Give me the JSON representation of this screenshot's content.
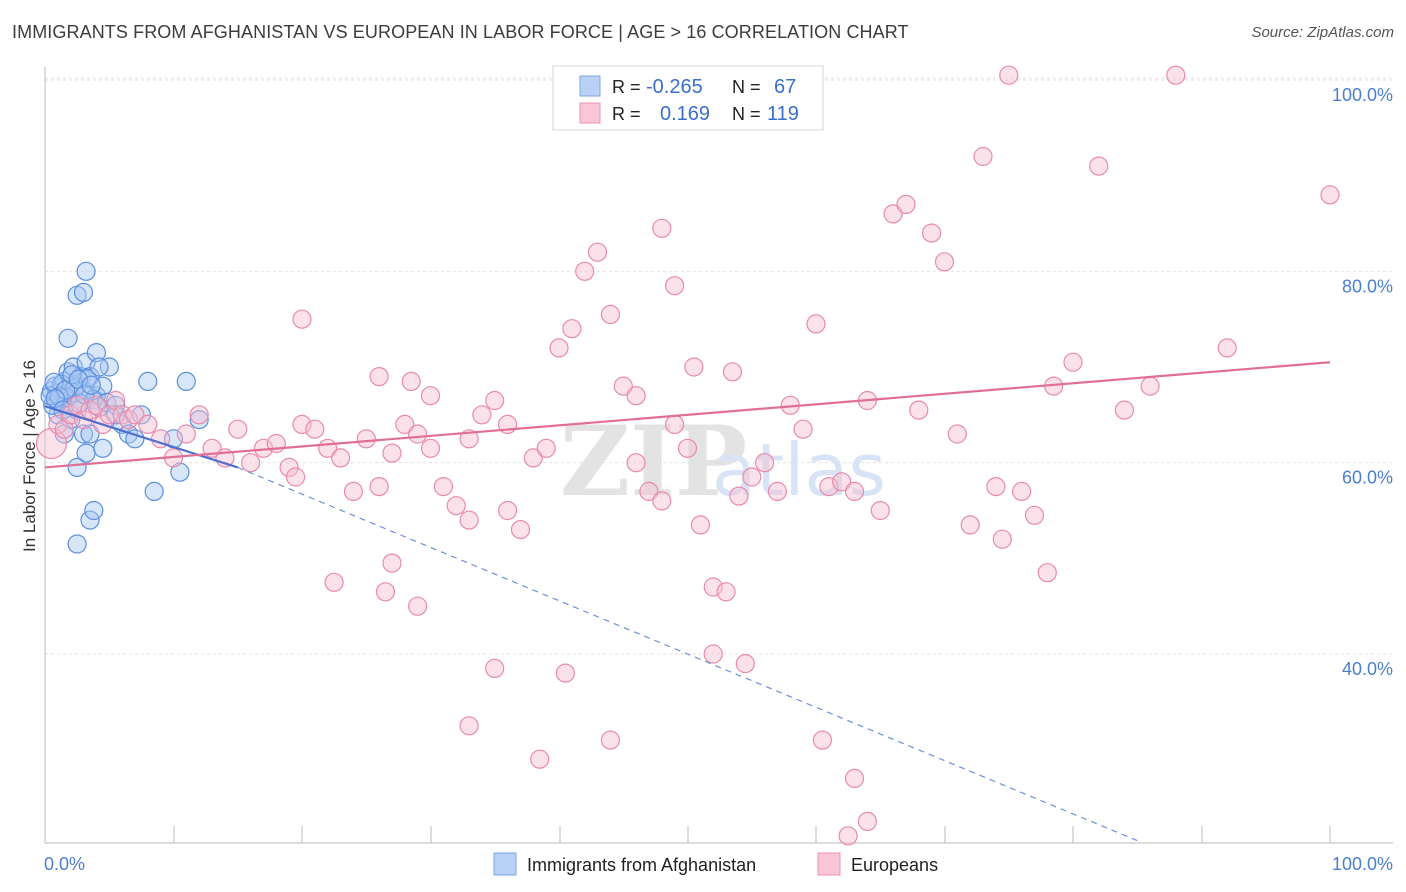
{
  "title": "IMMIGRANTS FROM AFGHANISTAN VS EUROPEAN IN LABOR FORCE | AGE > 16 CORRELATION CHART",
  "source": "Source: ZipAtlas.com",
  "watermark": {
    "zip": "ZIP",
    "atlas": "atlas"
  },
  "colors": {
    "blue": "#5b8fe0",
    "blue_fill": "#a9c7f2",
    "pink": "#e8799e",
    "pink_fill": "#f5b9cd",
    "tick": "#4a7fd0"
  },
  "legend_top": {
    "rows": [
      {
        "r_label": "R =",
        "r_value": "-0.265",
        "n_label": "N =",
        "n_value": "67"
      },
      {
        "r_label": "R =",
        "r_value": "0.169",
        "n_label": "N =",
        "n_value": "119"
      }
    ]
  },
  "chart_data": {
    "type": "scatter",
    "title": "IMMIGRANTS FROM AFGHANISTAN VS EUROPEAN IN LABOR FORCE | AGE > 16 CORRELATION CHART",
    "xlabel": "",
    "ylabel": "In Labor Force | Age > 16",
    "xlim": [
      0,
      100
    ],
    "ylim": [
      20,
      102
    ],
    "x_tick_labels": [
      "0.0%",
      "100.0%"
    ],
    "y_ticks": [
      40,
      60,
      80,
      100
    ],
    "y_tick_labels": [
      "40.0%",
      "60.0%",
      "80.0%",
      "100.0%"
    ],
    "grid": true,
    "series": [
      {
        "name": "Immigrants from Afghanistan",
        "r": -0.265,
        "n": 67,
        "trend": {
          "x0": 0,
          "y0": 65.9,
          "x1": 15,
          "y1": 59.5,
          "dash_to_x": 85,
          "dash_to_y": 20.5
        },
        "points": [
          [
            0.5,
            67.5
          ],
          [
            0.8,
            68.0
          ],
          [
            1.0,
            66.5
          ],
          [
            1.2,
            67.0
          ],
          [
            1.5,
            68.5
          ],
          [
            1.8,
            69.5
          ],
          [
            2.0,
            67.0
          ],
          [
            2.2,
            70.0
          ],
          [
            2.5,
            68.0
          ],
          [
            2.8,
            69.0
          ],
          [
            3.0,
            67.5
          ],
          [
            3.2,
            70.5
          ],
          [
            3.5,
            69.0
          ],
          [
            4.0,
            67.0
          ],
          [
            4.5,
            68.0
          ],
          [
            1.0,
            65.0
          ],
          [
            1.5,
            66.0
          ],
          [
            2.0,
            64.5
          ],
          [
            2.5,
            65.5
          ],
          [
            3.0,
            63.0
          ],
          [
            0.6,
            66.0
          ],
          [
            0.9,
            67.2
          ],
          [
            1.3,
            68.2
          ],
          [
            1.7,
            66.8
          ],
          [
            2.3,
            67.8
          ],
          [
            2.7,
            66.2
          ],
          [
            3.3,
            68.8
          ],
          [
            3.8,
            66.6
          ],
          [
            4.2,
            65.8
          ],
          [
            0.4,
            67.0
          ],
          [
            0.7,
            68.4
          ],
          [
            1.1,
            66.9
          ],
          [
            1.6,
            67.6
          ],
          [
            2.1,
            69.2
          ],
          [
            2.6,
            68.7
          ],
          [
            3.1,
            67.1
          ],
          [
            3.6,
            68.1
          ],
          [
            4.8,
            66.3
          ],
          [
            5.0,
            70.0
          ],
          [
            5.5,
            66.0
          ],
          [
            6.0,
            64.0
          ],
          [
            6.5,
            63.0
          ],
          [
            7.0,
            62.5
          ],
          [
            8.0,
            68.5
          ],
          [
            3.2,
            80.0
          ],
          [
            2.5,
            77.5
          ],
          [
            3.0,
            77.8
          ],
          [
            4.0,
            71.5
          ],
          [
            1.8,
            73.0
          ],
          [
            4.2,
            70.0
          ],
          [
            11.0,
            68.5
          ],
          [
            3.5,
            63.0
          ],
          [
            3.2,
            61.0
          ],
          [
            4.5,
            61.5
          ],
          [
            1.5,
            63.0
          ],
          [
            7.5,
            65.0
          ],
          [
            2.5,
            59.5
          ],
          [
            8.5,
            57.0
          ],
          [
            3.5,
            54.0
          ],
          [
            3.8,
            55.0
          ],
          [
            2.5,
            51.5
          ],
          [
            10.5,
            59.0
          ],
          [
            12.0,
            64.5
          ],
          [
            10.0,
            62.5
          ],
          [
            5.5,
            65.0
          ],
          [
            0.8,
            66.7
          ],
          [
            1.4,
            65.5
          ]
        ]
      },
      {
        "name": "Europeans",
        "r": 0.169,
        "n": 119,
        "trend": {
          "x0": 0,
          "y0": 59.5,
          "x1": 100,
          "y1": 70.5
        },
        "points": [
          [
            0.5,
            62.0
          ],
          [
            1.0,
            64.0
          ],
          [
            1.5,
            63.5
          ],
          [
            2.0,
            65.0
          ],
          [
            2.5,
            66.0
          ],
          [
            3.0,
            64.5
          ],
          [
            3.5,
            65.5
          ],
          [
            4.0,
            66.0
          ],
          [
            4.5,
            64.0
          ],
          [
            5.0,
            65.0
          ],
          [
            5.5,
            66.5
          ],
          [
            6.0,
            65.0
          ],
          [
            6.5,
            64.5
          ],
          [
            7.0,
            65.0
          ],
          [
            8.0,
            64.0
          ],
          [
            9.0,
            62.5
          ],
          [
            10.0,
            60.5
          ],
          [
            11.0,
            63.0
          ],
          [
            12.0,
            65.0
          ],
          [
            13.0,
            61.5
          ],
          [
            14.0,
            60.5
          ],
          [
            15.0,
            63.5
          ],
          [
            16.0,
            60.0
          ],
          [
            17.0,
            61.5
          ],
          [
            18.0,
            62.0
          ],
          [
            19.0,
            59.5
          ],
          [
            20.0,
            64.0
          ],
          [
            21.0,
            63.5
          ],
          [
            22.0,
            61.5
          ],
          [
            23.0,
            60.5
          ],
          [
            24.0,
            57.0
          ],
          [
            25.0,
            62.5
          ],
          [
            26.0,
            57.5
          ],
          [
            27.0,
            61.0
          ],
          [
            28.0,
            64.0
          ],
          [
            29.0,
            63.0
          ],
          [
            30.0,
            61.5
          ],
          [
            31.0,
            57.5
          ],
          [
            32.0,
            55.5
          ],
          [
            33.0,
            54.0
          ],
          [
            34.0,
            65.0
          ],
          [
            35.0,
            66.5
          ],
          [
            36.0,
            55.0
          ],
          [
            37.0,
            53.0
          ],
          [
            38.0,
            60.5
          ],
          [
            39.0,
            61.5
          ],
          [
            40.0,
            72.0
          ],
          [
            41.0,
            74.0
          ],
          [
            42.0,
            80.0
          ],
          [
            43.0,
            82.0
          ],
          [
            44.0,
            75.5
          ],
          [
            45.0,
            68.0
          ],
          [
            46.0,
            60.0
          ],
          [
            47.0,
            57.0
          ],
          [
            48.0,
            56.0
          ],
          [
            49.0,
            64.0
          ],
          [
            50.0,
            61.5
          ],
          [
            51.0,
            53.5
          ],
          [
            52.0,
            47.0
          ],
          [
            53.0,
            46.5
          ],
          [
            54.0,
            56.5
          ],
          [
            55.0,
            58.5
          ],
          [
            56.0,
            60.0
          ],
          [
            57.0,
            57.0
          ],
          [
            58.0,
            66.0
          ],
          [
            59.0,
            63.5
          ],
          [
            60.0,
            74.5
          ],
          [
            61.0,
            57.5
          ],
          [
            62.0,
            58.0
          ],
          [
            63.0,
            57.0
          ],
          [
            64.0,
            66.5
          ],
          [
            65.0,
            55.0
          ],
          [
            66.0,
            86.0
          ],
          [
            67.0,
            87.0
          ],
          [
            68.0,
            65.5
          ],
          [
            69.0,
            84.0
          ],
          [
            70.0,
            81.0
          ],
          [
            71.0,
            63.0
          ],
          [
            72.0,
            53.5
          ],
          [
            73.0,
            92.0
          ],
          [
            75.0,
            100.5
          ],
          [
            76.0,
            57.0
          ],
          [
            77.0,
            54.5
          ],
          [
            78.0,
            48.5
          ],
          [
            80.0,
            70.5
          ],
          [
            82.0,
            91.0
          ],
          [
            84.0,
            65.5
          ],
          [
            86.0,
            68.0
          ],
          [
            88.0,
            100.5
          ],
          [
            92.0,
            72.0
          ],
          [
            100.0,
            88.0
          ],
          [
            20.0,
            75.0
          ],
          [
            26.0,
            69.0
          ],
          [
            30.0,
            67.0
          ],
          [
            36.0,
            64.0
          ],
          [
            46.0,
            67.0
          ],
          [
            48.0,
            84.5
          ],
          [
            49.0,
            78.5
          ],
          [
            50.5,
            70.0
          ],
          [
            53.5,
            69.5
          ],
          [
            28.5,
            68.5
          ],
          [
            33.0,
            62.5
          ],
          [
            19.5,
            58.5
          ],
          [
            22.5,
            47.5
          ],
          [
            27.0,
            49.5
          ],
          [
            26.5,
            46.5
          ],
          [
            29.0,
            45.0
          ],
          [
            35.0,
            38.5
          ],
          [
            40.5,
            38.0
          ],
          [
            44.0,
            31.0
          ],
          [
            33.0,
            32.5
          ],
          [
            38.5,
            29.0
          ],
          [
            52.0,
            40.0
          ],
          [
            54.5,
            39.0
          ],
          [
            60.5,
            31.0
          ],
          [
            63.0,
            27.0
          ],
          [
            64.0,
            22.5
          ],
          [
            62.5,
            21.0
          ],
          [
            74.0,
            57.5
          ],
          [
            74.5,
            52.0
          ],
          [
            78.5,
            68.0
          ]
        ]
      }
    ]
  },
  "legend_bottom": [
    {
      "label": "Immigrants from Afghanistan"
    },
    {
      "label": "Europeans"
    }
  ]
}
